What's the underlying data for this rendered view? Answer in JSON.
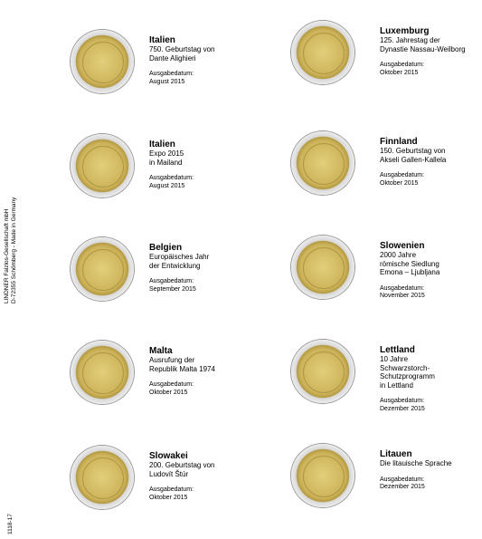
{
  "publisher": {
    "company": "LINDNER Falzlos-Gesellschaft mbH",
    "address": "D-72355 Schömberg - Made in Germany",
    "code": "1118-17"
  },
  "entries": [
    {
      "country": "Italien",
      "lines": [
        "750. Geburtstag von",
        "Dante Alighieri"
      ],
      "date_label": "Ausgabedatum:",
      "date": "August 2015"
    },
    {
      "country": "Luxemburg",
      "lines": [
        "125. Jahrestag der",
        "Dynastie Nassau-Weilborg"
      ],
      "date_label": "Ausgabedatum:",
      "date": "Oktober 2015"
    },
    {
      "country": "Italien",
      "lines": [
        "Expo 2015",
        "in Mailand"
      ],
      "date_label": "Ausgabedatum:",
      "date": "August 2015"
    },
    {
      "country": "Finnland",
      "lines": [
        "150. Geburtstag von",
        "Akseli Gallen-Kallela"
      ],
      "date_label": "Ausgabedatum:",
      "date": "Oktober 2015"
    },
    {
      "country": "Belgien",
      "lines": [
        "Europäisches Jahr",
        "der Entwicklung"
      ],
      "date_label": "Ausgabedatum:",
      "date": "September 2015"
    },
    {
      "country": "Slowenien",
      "lines": [
        "2000 Jahre",
        "römische Siedlung",
        "Emona – Ljubljana"
      ],
      "date_label": "Ausgabedatum:",
      "date": "November 2015"
    },
    {
      "country": "Malta",
      "lines": [
        "Ausrufung der",
        "Republik Malta 1974"
      ],
      "date_label": "Ausgabedatum:",
      "date": "Oktober 2015"
    },
    {
      "country": "Lettland",
      "lines": [
        "10 Jahre",
        "Schwarzstorch-",
        "Schutzprogramm",
        "in Lettland"
      ],
      "date_label": "Ausgabedatum:",
      "date": "Dezember 2015"
    },
    {
      "country": "Slowakei",
      "lines": [
        "200. Geburtstag von",
        "Ludovít Štúr"
      ],
      "date_label": "Ausgabedatum:",
      "date": "Oktober 2015"
    },
    {
      "country": "Litauen",
      "lines": [
        "Die litauische Sprache"
      ],
      "date_label": "Ausgabedatum:",
      "date": "Dezember 2015"
    }
  ]
}
